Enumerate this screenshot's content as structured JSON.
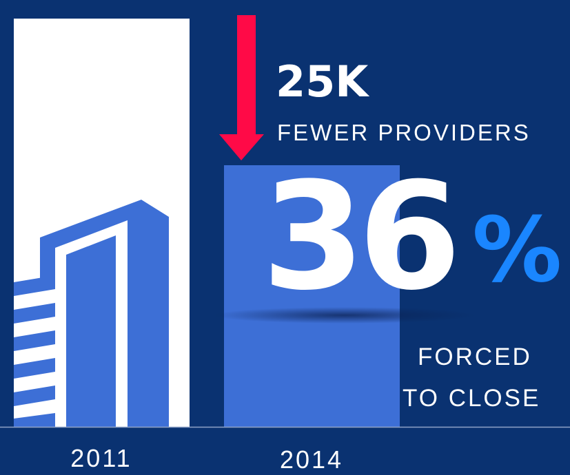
{
  "headline": {
    "value": "25K",
    "label": "FEWER PROVIDERS"
  },
  "percent": {
    "number": "36",
    "sign": "%"
  },
  "caption": [
    "FORCED",
    "TO CLOSE"
  ],
  "years": [
    "2011",
    "2014"
  ]
}
